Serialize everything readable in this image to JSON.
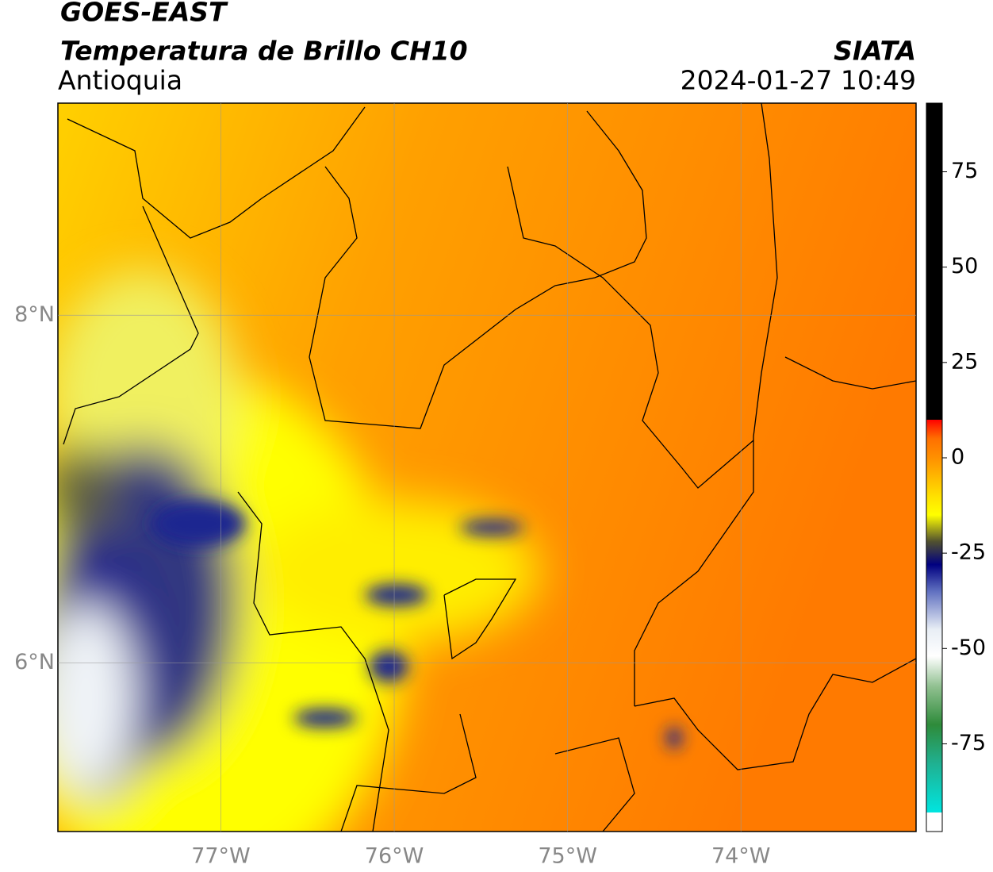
{
  "chart_data": {
    "type": "map",
    "title": "GOES-EAST",
    "subtitle": "Temperatura de Brillo CH10",
    "region": "Antioquia",
    "source": "SIATA",
    "datetime": "2024-01-27 10:49",
    "xlim": [
      -77.94,
      -72.99
    ],
    "ylim": [
      5.03,
      9.22
    ],
    "xticks": [
      {
        "value": -77,
        "label": "77°W"
      },
      {
        "value": -76,
        "label": "76°W"
      },
      {
        "value": -75,
        "label": "75°W"
      },
      {
        "value": -74,
        "label": "74°W"
      }
    ],
    "yticks": [
      {
        "value": 6,
        "label": "6°N"
      },
      {
        "value": 8,
        "label": "8°N"
      }
    ],
    "grid": true,
    "clim": [
      -98,
      93
    ],
    "cticks": [
      -75,
      -50,
      -25,
      0,
      25,
      50,
      75
    ],
    "colormap": [
      {
        "value": -98,
        "color": "#ffffff"
      },
      {
        "value": -93,
        "color": "#ffffff"
      },
      {
        "value": -93,
        "color": "#00e5e0"
      },
      {
        "value": -80,
        "color": "#20b090"
      },
      {
        "value": -70,
        "color": "#2e8b3a"
      },
      {
        "value": -60,
        "color": "#90c090"
      },
      {
        "value": -52,
        "color": "#ffffff"
      },
      {
        "value": -45,
        "color": "#e8eef5"
      },
      {
        "value": -35,
        "color": "#6070c0"
      },
      {
        "value": -28,
        "color": "#000080"
      },
      {
        "value": -22,
        "color": "#505030"
      },
      {
        "value": -15,
        "color": "#ffff00"
      },
      {
        "value": -10,
        "color": "#ffe000"
      },
      {
        "value": 0,
        "color": "#ff9000"
      },
      {
        "value": 5,
        "color": "#ff7000"
      },
      {
        "value": 8,
        "color": "#ff3000"
      },
      {
        "value": 10,
        "color": "#ff0000"
      },
      {
        "value": 10,
        "color": "#000000"
      },
      {
        "value": 93,
        "color": "#000000"
      }
    ]
  }
}
